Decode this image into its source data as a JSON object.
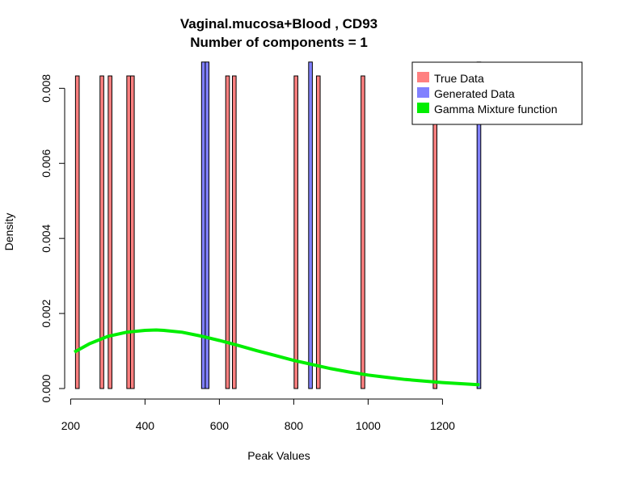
{
  "chart_data": {
    "type": "bar",
    "title": "Vaginal.mucosa+Blood , CD93",
    "subtitle": "Number of components =  1",
    "xlabel": "Peak Values",
    "ylabel": "Density",
    "xlim": [
      210,
      1310
    ],
    "ylim": [
      0,
      0.00833
    ],
    "x_ticks": [
      200,
      400,
      600,
      800,
      1000,
      1200
    ],
    "y_ticks": [
      0.0,
      0.002,
      0.004,
      0.006,
      0.008
    ],
    "y_tick_labels": [
      "0.000",
      "0.002",
      "0.004",
      "0.006",
      "0.008"
    ],
    "bar_width": 10,
    "series": [
      {
        "name": "True Data",
        "color": "#ff8080",
        "x": [
          218,
          284,
          306,
          356,
          366,
          622,
          640,
          806,
          866,
          986,
          1180
        ],
        "values": [
          0.00833,
          0.00833,
          0.00833,
          0.00833,
          0.00833,
          0.00833,
          0.00833,
          0.00833,
          0.00833,
          0.00833,
          0.00833
        ]
      },
      {
        "name": "Generated Data",
        "color": "#8080ff",
        "x": [
          557,
          567,
          845,
          1298
        ],
        "values": [
          0.0087,
          0.0087,
          0.0087,
          0.0087
        ]
      },
      {
        "name": "Gamma Mixture function",
        "color": "#00ee00",
        "type": "line",
        "x": [
          210,
          250,
          300,
          350,
          400,
          430,
          450,
          500,
          550,
          600,
          650,
          700,
          750,
          800,
          850,
          900,
          950,
          1000,
          1050,
          1100,
          1150,
          1200,
          1250,
          1300
        ],
        "values": [
          0.00097,
          0.00119,
          0.00139,
          0.0015,
          0.00155,
          0.00156,
          0.00155,
          0.0015,
          0.0014,
          0.00128,
          0.00115,
          0.00101,
          0.00088,
          0.00075,
          0.00064,
          0.00053,
          0.00044,
          0.00036,
          0.0003,
          0.00024,
          0.0002,
          0.00016,
          0.00013,
          0.0001
        ]
      }
    ],
    "legend_placement": "top-right"
  }
}
